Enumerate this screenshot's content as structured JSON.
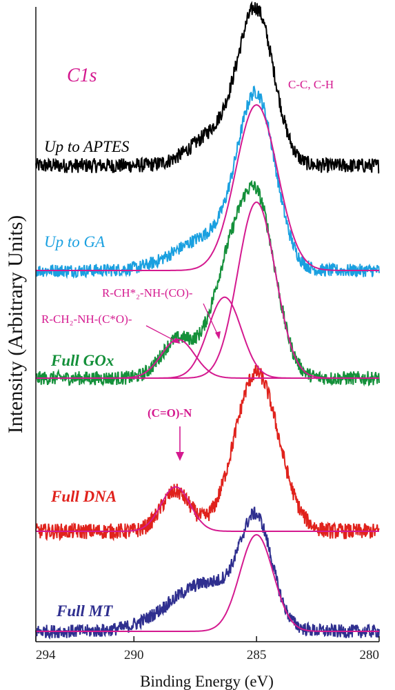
{
  "chart_data": {
    "type": "line",
    "title": "C1s",
    "xlabel": "Binding Energy (eV)",
    "ylabel": "Intensity (Arbitrary Units)",
    "xlim": [
      294,
      280
    ],
    "x_reversed": true,
    "x_ticks": [
      294,
      290,
      285,
      280
    ],
    "grid": false,
    "series": [
      {
        "name": "Up to APTES",
        "color": "#000000",
        "style": "italic",
        "peaks": [
          {
            "center": 285.0,
            "fwhm": 1.7,
            "height": 1.0
          },
          {
            "center": 286.6,
            "fwhm": 2.4,
            "height": 0.22
          }
        ],
        "baseline": 0.0,
        "noise": 0.05
      },
      {
        "name": "Up to GA",
        "color": "#1aa0e0",
        "style": "italic",
        "peaks": [
          {
            "center": 285.0,
            "fwhm": 1.8,
            "height": 1.0
          },
          {
            "center": 286.9,
            "fwhm": 3.2,
            "height": 0.2
          }
        ],
        "baseline": 0.0,
        "noise": 0.04,
        "fit": [
          {
            "center": 285.0,
            "fwhm": 2.0,
            "height": 1.0
          }
        ]
      },
      {
        "name": "Full GOx",
        "color": "#14903a",
        "style": "bold italic",
        "peaks": [
          {
            "center": 285.0,
            "fwhm": 1.8,
            "height": 1.0
          },
          {
            "center": 286.3,
            "fwhm": 1.6,
            "height": 0.46
          },
          {
            "center": 288.2,
            "fwhm": 1.6,
            "height": 0.22
          }
        ],
        "baseline": 0.0,
        "noise": 0.04,
        "fit": [
          {
            "center": 285.0,
            "fwhm": 1.8,
            "height": 1.0
          },
          {
            "center": 286.3,
            "fwhm": 1.6,
            "height": 0.46
          },
          {
            "center": 288.2,
            "fwhm": 1.6,
            "height": 0.22
          }
        ]
      },
      {
        "name": "Full DNA",
        "color": "#e0221c",
        "style": "bold italic",
        "peaks": [
          {
            "center": 285.0,
            "fwhm": 2.1,
            "height": 1.0
          },
          {
            "center": 288.3,
            "fwhm": 1.4,
            "height": 0.25
          }
        ],
        "baseline": 0.0,
        "noise": 0.05,
        "fit": [
          {
            "center": 288.3,
            "fwhm": 1.4,
            "height": 0.28
          }
        ]
      },
      {
        "name": "Full MT",
        "color": "#2f2f8f",
        "style": "bold italic",
        "peaks": [
          {
            "center": 285.0,
            "fwhm": 1.5,
            "height": 1.0
          },
          {
            "center": 287.0,
            "fwhm": 3.6,
            "height": 0.5
          }
        ],
        "baseline": 0.0,
        "noise": 0.07,
        "fit": [
          {
            "center": 285.0,
            "fwhm": 1.6,
            "height": 1.0
          }
        ]
      }
    ],
    "annotations": {
      "cc_ch": "C-C, C-H",
      "r_ch2_nh_co": "R-CH*₂-NH-(CO)-",
      "r_ch2_nh_c_o": "R-CH₂-NH-(C*O)-",
      "c_o_n": "(C=O)-N"
    },
    "fit_color": "#d4198f"
  }
}
